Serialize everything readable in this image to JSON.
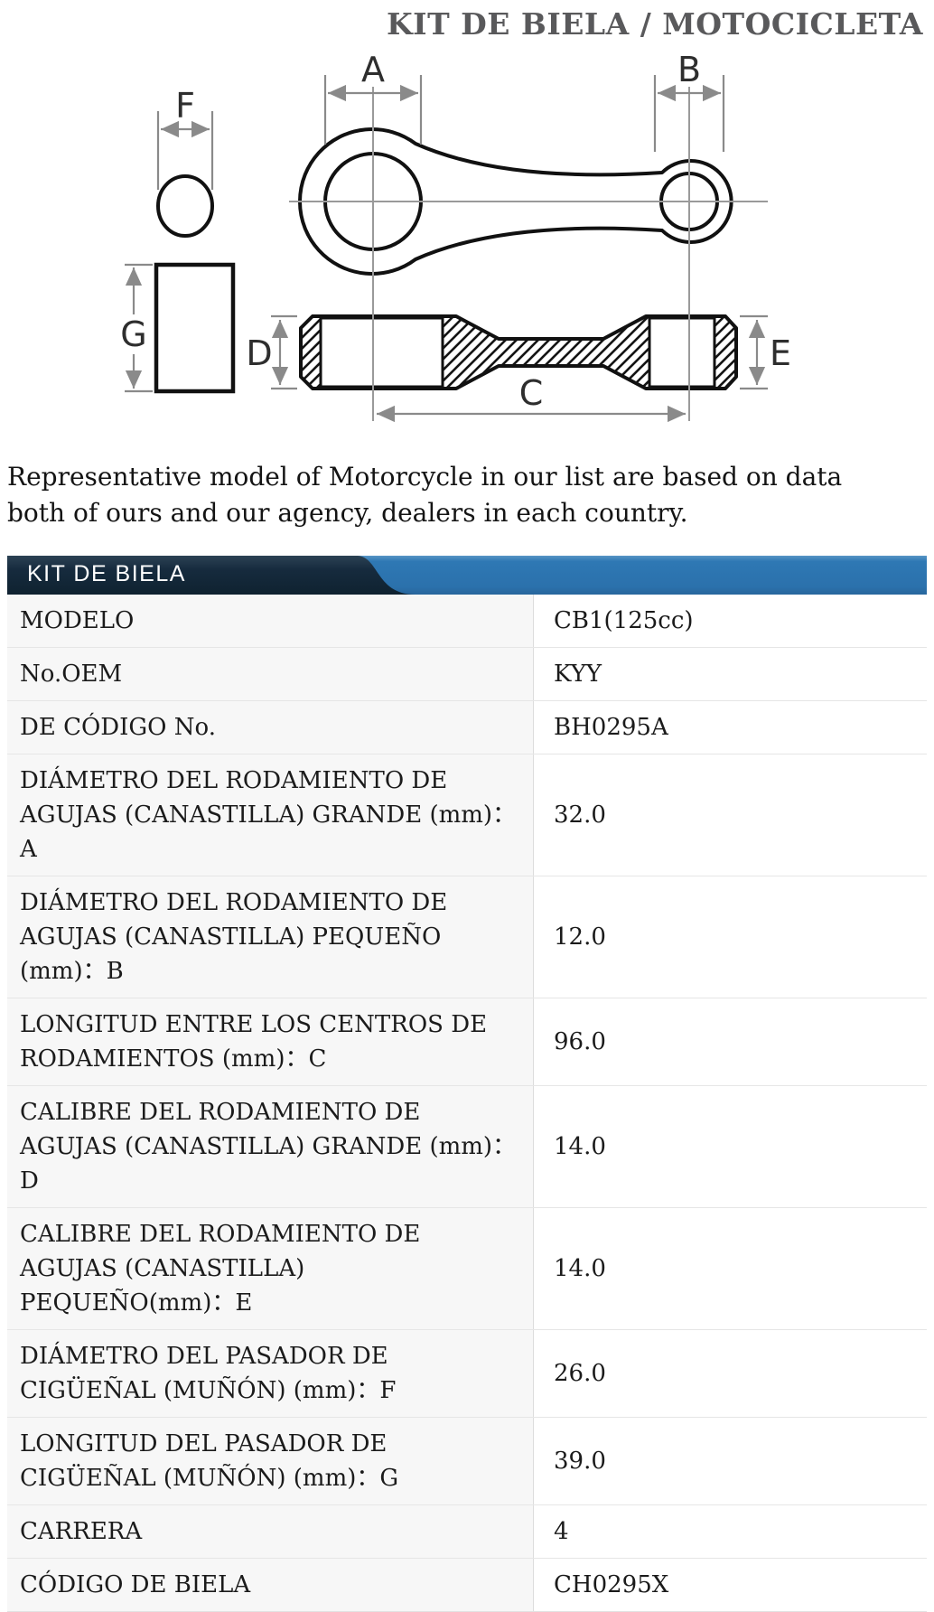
{
  "page": {
    "title": "KIT DE BIELA / MOTOCICLETA",
    "description": "Representative model of Motorcycle in our list are based on data both of ours and our agency, dealers in each country."
  },
  "diagram": {
    "name": "connecting-rod dimension drawing",
    "labels": {
      "A": "A",
      "B": "B",
      "C": "C",
      "D": "D",
      "E": "E",
      "F": "F",
      "G": "G"
    }
  },
  "table": {
    "header": "KIT DE BIELA",
    "colors": {
      "band_dark": "#152a3d",
      "band_blue": "#2d77b3",
      "label_cell_bg": "#f7f7f7",
      "grid_line": "#e6e6e6"
    },
    "rows": [
      {
        "label": "MODELO",
        "value": "CB1(125cc)"
      },
      {
        "label": "No.OEM",
        "value": "KYY"
      },
      {
        "label": "DE CÓDIGO No.",
        "value": "BH0295A"
      },
      {
        "label": "DIÁMETRO DEL RODAMIENTO DE AGUJAS (CANASTILLA) GRANDE (mm)：A",
        "value": "32.0"
      },
      {
        "label": "DIÁMETRO DEL RODAMIENTO DE AGUJAS (CANASTILLA) PEQUEÑO (mm)：B",
        "value": "12.0"
      },
      {
        "label": "LONGITUD ENTRE LOS CENTROS DE RODAMIENTOS (mm)：C",
        "value": "96.0"
      },
      {
        "label": "CALIBRE DEL RODAMIENTO DE AGUJAS (CANASTILLA) GRANDE (mm)：D",
        "value": "14.0"
      },
      {
        "label": "CALIBRE DEL RODAMIENTO DE AGUJAS (CANASTILLA) PEQUEÑO(mm)：E",
        "value": "14.0"
      },
      {
        "label": "DIÁMETRO DEL PASADOR DE CIGÜEÑAL (MUÑÓN) (mm)：F",
        "value": "26.0"
      },
      {
        "label": "LONGITUD DEL PASADOR DE CIGÜEÑAL (MUÑÓN) (mm)：G",
        "value": "39.0"
      },
      {
        "label": "CARRERA",
        "value": "4"
      },
      {
        "label": "CÓDIGO DE BIELA",
        "value": "CH0295X"
      }
    ]
  }
}
